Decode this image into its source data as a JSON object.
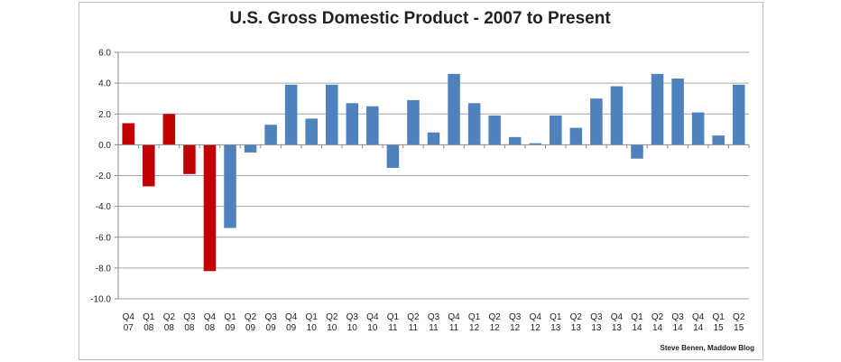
{
  "chart_data": {
    "type": "bar",
    "title": "U.S. Gross Domestic Product - 2007 to Present",
    "xlabel": "",
    "ylabel": "",
    "ylim": [
      -10,
      6
    ],
    "yticks": [
      "6.0",
      "4.0",
      "2.0",
      "0.0",
      "-2.0",
      "-4.0",
      "-6.0",
      "-8.0",
      "-10.0"
    ],
    "grid": true,
    "categories": [
      [
        "Q4",
        "07"
      ],
      [
        "Q1",
        "08"
      ],
      [
        "Q2",
        "08"
      ],
      [
        "Q3",
        "08"
      ],
      [
        "Q4",
        "08"
      ],
      [
        "Q1",
        "09"
      ],
      [
        "Q2",
        "09"
      ],
      [
        "Q3",
        "09"
      ],
      [
        "Q4",
        "09"
      ],
      [
        "Q1",
        "10"
      ],
      [
        "Q2",
        "10"
      ],
      [
        "Q3",
        "10"
      ],
      [
        "Q4",
        "10"
      ],
      [
        "Q1",
        "11"
      ],
      [
        "Q2",
        "11"
      ],
      [
        "Q3",
        "11"
      ],
      [
        "Q4",
        "11"
      ],
      [
        "Q1",
        "12"
      ],
      [
        "Q2",
        "12"
      ],
      [
        "Q3",
        "12"
      ],
      [
        "Q4",
        "12"
      ],
      [
        "Q1",
        "13"
      ],
      [
        "Q2",
        "13"
      ],
      [
        "Q3",
        "13"
      ],
      [
        "Q4",
        "13"
      ],
      [
        "Q1",
        "14"
      ],
      [
        "Q2",
        "14"
      ],
      [
        "Q3",
        "14"
      ],
      [
        "Q4",
        "14"
      ],
      [
        "Q1",
        "15"
      ],
      [
        "Q2",
        "15"
      ]
    ],
    "values": [
      1.4,
      -2.7,
      2.0,
      -1.9,
      -8.2,
      -5.4,
      -0.5,
      1.3,
      3.9,
      1.7,
      3.9,
      2.7,
      2.5,
      -1.5,
      2.9,
      0.8,
      4.6,
      2.7,
      1.9,
      0.5,
      0.1,
      1.9,
      1.1,
      3.0,
      3.8,
      -0.9,
      4.6,
      4.3,
      2.1,
      0.6,
      3.9
    ],
    "bar_colors": [
      "#c00000",
      "#c00000",
      "#c00000",
      "#c00000",
      "#c00000",
      "#4f81bd",
      "#4f81bd",
      "#4f81bd",
      "#4f81bd",
      "#4f81bd",
      "#4f81bd",
      "#4f81bd",
      "#4f81bd",
      "#4f81bd",
      "#4f81bd",
      "#4f81bd",
      "#4f81bd",
      "#4f81bd",
      "#4f81bd",
      "#4f81bd",
      "#4f81bd",
      "#4f81bd",
      "#4f81bd",
      "#4f81bd",
      "#4f81bd",
      "#4f81bd",
      "#4f81bd",
      "#4f81bd",
      "#4f81bd",
      "#4f81bd",
      "#4f81bd"
    ],
    "credit": "Steve Benen, Maddow Blog"
  }
}
